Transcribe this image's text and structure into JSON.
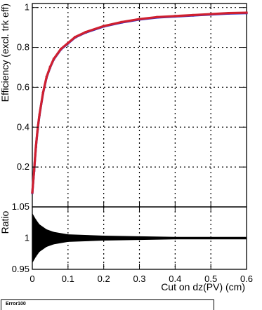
{
  "chart_data": [
    {
      "type": "scatter",
      "panel": "top",
      "ylabel": "Efficiency (excl. trk eff)",
      "xlim": [
        0,
        0.6
      ],
      "ylim": [
        0,
        1.02
      ],
      "grid": true,
      "xticks": [
        "0",
        "0.1",
        "0.2",
        "0.3",
        "0.4",
        "0.5",
        "0.6"
      ],
      "yticks": [
        "0.2",
        "0.4",
        "0.6",
        "0.8",
        "1"
      ],
      "series": [
        {
          "color": "#2b2bc8",
          "x": [
            0.0,
            0.005,
            0.01,
            0.015,
            0.02,
            0.03,
            0.04,
            0.05,
            0.06,
            0.08,
            0.1,
            0.12,
            0.15,
            0.2,
            0.25,
            0.3,
            0.35,
            0.4,
            0.45,
            0.5,
            0.55,
            0.6
          ],
          "y": [
            0.07,
            0.18,
            0.3,
            0.39,
            0.46,
            0.57,
            0.65,
            0.7,
            0.74,
            0.79,
            0.82,
            0.85,
            0.875,
            0.905,
            0.925,
            0.94,
            0.95,
            0.955,
            0.96,
            0.965,
            0.97,
            0.972
          ]
        },
        {
          "color": "#d02030",
          "x": [
            0.0,
            0.005,
            0.01,
            0.015,
            0.02,
            0.03,
            0.04,
            0.05,
            0.06,
            0.08,
            0.1,
            0.12,
            0.15,
            0.2,
            0.25,
            0.3,
            0.35,
            0.4,
            0.45,
            0.5,
            0.55,
            0.6
          ],
          "y": [
            0.072,
            0.182,
            0.302,
            0.392,
            0.462,
            0.572,
            0.652,
            0.702,
            0.742,
            0.792,
            0.822,
            0.852,
            0.877,
            0.907,
            0.927,
            0.942,
            0.952,
            0.957,
            0.962,
            0.967,
            0.972,
            0.974
          ]
        }
      ]
    },
    {
      "type": "line",
      "panel": "bottom",
      "ylabel": "Ratio",
      "xlabel": "Cut on dz(PV) (cm)",
      "xlim": [
        0,
        0.6
      ],
      "ylim": [
        0.95,
        1.05
      ],
      "grid": true,
      "xticks": [
        "0",
        "0.1",
        "0.2",
        "0.3",
        "0.4",
        "0.5",
        "0.6"
      ],
      "yticks": [
        "0.95",
        "1",
        "1.05"
      ],
      "series": [
        {
          "color": "#cc0000",
          "x": [
            0.0,
            0.6
          ],
          "y": [
            1.0,
            1.0
          ]
        },
        {
          "color": "#000000",
          "x": [
            0.0,
            0.01,
            0.02,
            0.04,
            0.06,
            0.1,
            0.2,
            0.3,
            0.4,
            0.5,
            0.6
          ],
          "y": [
            1.0,
            1.0,
            1.0,
            1.0,
            1.0,
            1.0,
            1.0,
            1.0,
            1.0,
            1.0,
            1.0
          ],
          "error_half_width": [
            0.04,
            0.03,
            0.022,
            0.014,
            0.01,
            0.006,
            0.004,
            0.003,
            0.002,
            0.002,
            0.002
          ]
        }
      ]
    }
  ],
  "legend": {
    "label": "Error100"
  }
}
